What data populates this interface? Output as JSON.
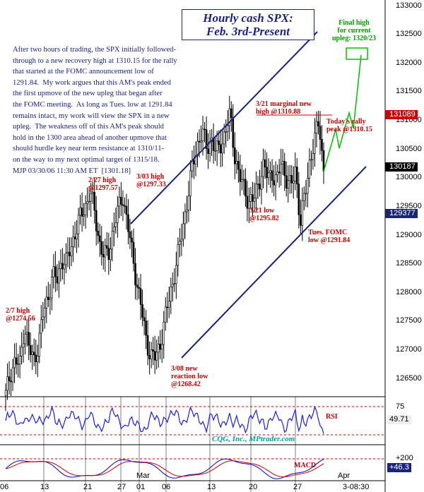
{
  "title": {
    "line1": "Hourly cash SPX:",
    "line2": "Feb. 3rd-Present"
  },
  "commentary": "After two hours of trading, the SPX initially followed-\nthrough to a new recovery high at 1310.15 for the rally\nthat started at the FOMC announcement low of\n1291.84.  My work argues that this AM's peak ended\nthe first upmove of the new upleg that began after\nthe FOMC meeting.  As long as Tues. low at 1291.84\nremains intact, my work will view the SPX in a new\nupleg.  The weakness off of this AM's peak should\nhold in the 1300 area ahead of another upmove that\nshould hurdle key near term resistance at 1310/11-\non the way to my next optimal target of 1315/18.\nMJP 03/30/06 11:30 AM ET  [1301.18]",
  "annotations": {
    "feb7_high": "2/7 high\n@1274.56",
    "feb27_high": "2/27 high\n@1297.57",
    "mar3_high": "3/03 high\n@1297.33",
    "mar8_low": "3/08 new\nreaction low\n@1268.42",
    "mar21_high": "3/21 marginal new\nhigh @1310.88",
    "mar21_low": "3/21 low\n@1295.82",
    "fomc_low": "Tues. FOMC\nlow @1291.84",
    "rally_peak": "Today's rally\npeak @1310.15",
    "final_high": "Final high\nfor current\nupleg: 1320/23"
  },
  "price_boxes": {
    "last_high": "131089",
    "current": "130187",
    "low": "129377"
  },
  "y_axis_labels": [
    "133000",
    "132500",
    "132000",
    "131500",
    "131000",
    "130500",
    "130000",
    "129500",
    "129000",
    "128500",
    "128000",
    "127500",
    "127000",
    "126500"
  ],
  "x_axis_labels": [
    "06",
    "13",
    "21",
    "27",
    "01",
    "06",
    "13",
    "20",
    "27",
    "3-08:30"
  ],
  "month_labels": [
    "Mar",
    "Apr"
  ],
  "rsi_panel": {
    "label": "RSI",
    "level_high": "75",
    "level_low": "25",
    "value": "49.71"
  },
  "macd_panel": {
    "label": "MACD",
    "level_high": "+200",
    "value": "+46.3"
  },
  "credit": "CQG, Inc., MPtrader.com",
  "colors": {
    "candle": "#000000",
    "channel": "#1a237e",
    "annotation": "#cc0000",
    "projection": "#00c000",
    "rsi": "#1a1aff",
    "macd": "#0000cc",
    "signal": "#cc0000",
    "grid": "#cc0000"
  },
  "chart_data": {
    "type": "candlestick",
    "title": "Hourly cash SPX: Feb. 3rd-Present",
    "x_labels": [
      "06",
      "13",
      "21",
      "27",
      "01",
      "06",
      "13",
      "20",
      "27",
      "3-08:30"
    ],
    "ylim": [
      1263,
      1332
    ],
    "pivots": [
      {
        "label": "2/7 high",
        "value": 1274.56
      },
      {
        "label": "2/27 high",
        "value": 1297.57
      },
      {
        "label": "3/03 high",
        "value": 1297.33
      },
      {
        "label": "3/08 reaction low",
        "value": 1268.42
      },
      {
        "label": "3/21 marginal new high",
        "value": 1310.88
      },
      {
        "label": "3/21 low",
        "value": 1295.82
      },
      {
        "label": "Tues. FOMC low",
        "value": 1291.84
      },
      {
        "label": "Today's rally peak",
        "value": 1310.15
      },
      {
        "label": "Final high target",
        "value": "1320/23"
      }
    ],
    "path": [
      1262,
      1266,
      1268,
      1267,
      1274.5,
      1270,
      1268,
      1271,
      1276,
      1279,
      1283,
      1282,
      1286,
      1285,
      1288,
      1291,
      1293,
      1295,
      1297.5,
      1294,
      1289,
      1286,
      1287,
      1291,
      1294,
      1297.3,
      1292,
      1287,
      1282,
      1277,
      1272,
      1269,
      1268.4,
      1271,
      1275,
      1279,
      1283,
      1287,
      1292,
      1297,
      1302,
      1306,
      1308,
      1305,
      1307,
      1304,
      1306,
      1308,
      1310.9,
      1304,
      1300,
      1298,
      1296,
      1295.8,
      1299,
      1302,
      1300,
      1301,
      1299,
      1303,
      1300,
      1298,
      1302,
      1291.8,
      1297,
      1303,
      1306,
      1310.15,
      1301.2
    ],
    "rsi_levels": [
      25,
      75
    ],
    "rsi_last": 49.71,
    "macd_last": 46.3
  }
}
